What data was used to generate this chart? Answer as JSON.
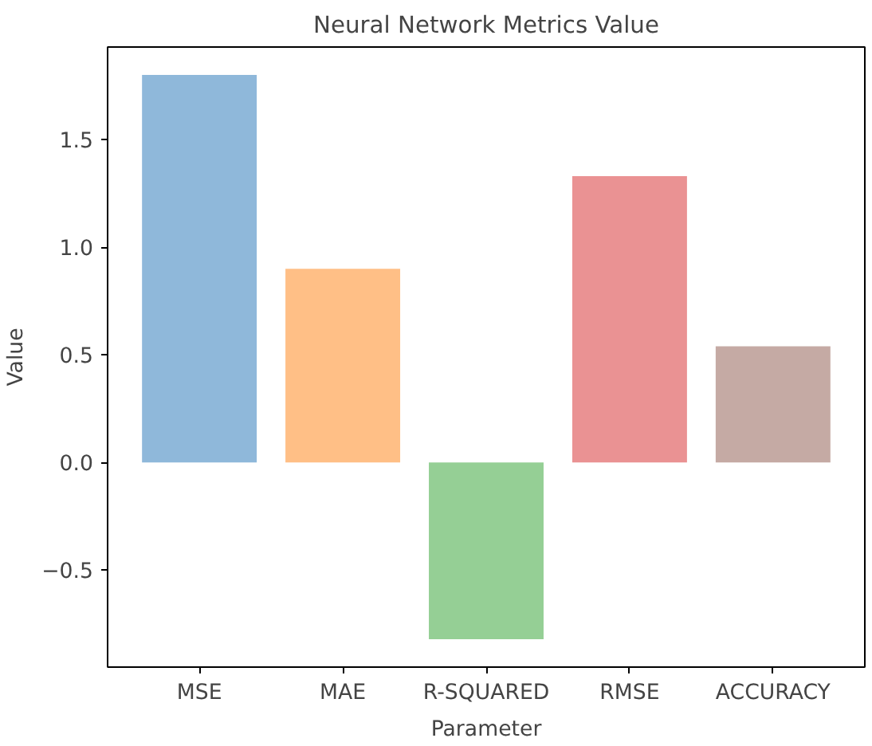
{
  "chart_data": {
    "type": "bar",
    "title": "Neural Network Metrics Value",
    "xlabel": "Parameter",
    "ylabel": "Value",
    "categories": [
      "MSE",
      "MAE",
      "R-SQUARED",
      "RMSE",
      "ACCURACY"
    ],
    "values": [
      1.8,
      0.9,
      -0.82,
      1.33,
      0.54
    ],
    "colors": [
      "#8fb8da",
      "#ffbf86",
      "#95cf95",
      "#ea9293",
      "#c5aaa4"
    ],
    "ylim": [
      -0.95,
      1.93
    ],
    "yticks": [
      {
        "value": -0.5,
        "label": "−0.5"
      },
      {
        "value": 0.0,
        "label": "0.0"
      },
      {
        "value": 0.5,
        "label": "0.5"
      },
      {
        "value": 1.0,
        "label": "1.0"
      },
      {
        "value": 1.5,
        "label": "1.5"
      }
    ],
    "grid": false
  }
}
